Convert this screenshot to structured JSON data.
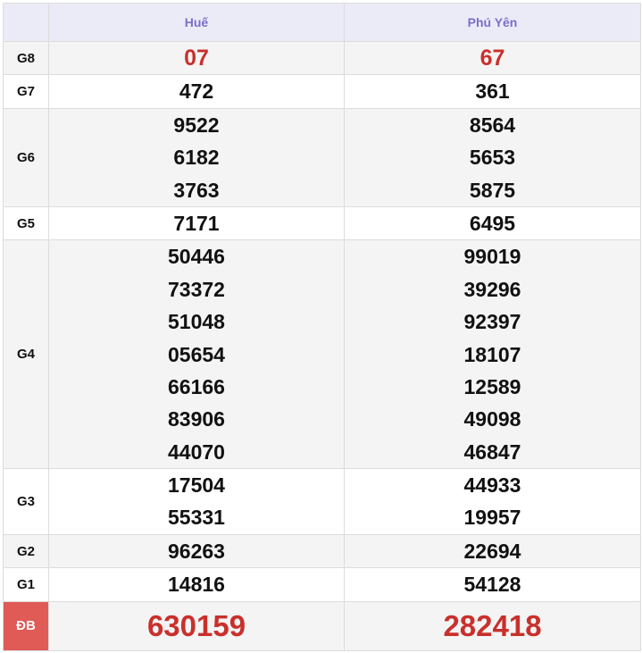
{
  "header": {
    "provinces": [
      "Huế",
      "Phú Yên"
    ]
  },
  "rows": [
    {
      "label": "G8",
      "values": [
        [
          "07"
        ],
        [
          "67"
        ]
      ],
      "style": "gray",
      "highlight": true
    },
    {
      "label": "G7",
      "values": [
        [
          "472"
        ],
        [
          "361"
        ]
      ],
      "style": "white"
    },
    {
      "label": "G6",
      "values": [
        [
          "9522",
          "6182",
          "3763"
        ],
        [
          "8564",
          "5653",
          "5875"
        ]
      ],
      "style": "gray"
    },
    {
      "label": "G5",
      "values": [
        [
          "7171"
        ],
        [
          "6495"
        ]
      ],
      "style": "white"
    },
    {
      "label": "G4",
      "values": [
        [
          "50446",
          "73372",
          "51048",
          "05654",
          "66166",
          "83906",
          "44070"
        ],
        [
          "99019",
          "39296",
          "92397",
          "18107",
          "12589",
          "49098",
          "46847"
        ]
      ],
      "style": "gray"
    },
    {
      "label": "G3",
      "values": [
        [
          "17504",
          "55331"
        ],
        [
          "44933",
          "19957"
        ]
      ],
      "style": "white"
    },
    {
      "label": "G2",
      "values": [
        [
          "96263"
        ],
        [
          "22694"
        ]
      ],
      "style": "gray"
    },
    {
      "label": "G1",
      "values": [
        [
          "14816"
        ],
        [
          "54128"
        ]
      ],
      "style": "white"
    },
    {
      "label": "ĐB",
      "values": [
        [
          "630159"
        ],
        [
          "282418"
        ]
      ],
      "style": "gray",
      "special": true
    }
  ],
  "colors": {
    "prize_red": "#c9302c",
    "header_text": "#7b6fc8",
    "special_label_bg": "#e05a56"
  }
}
